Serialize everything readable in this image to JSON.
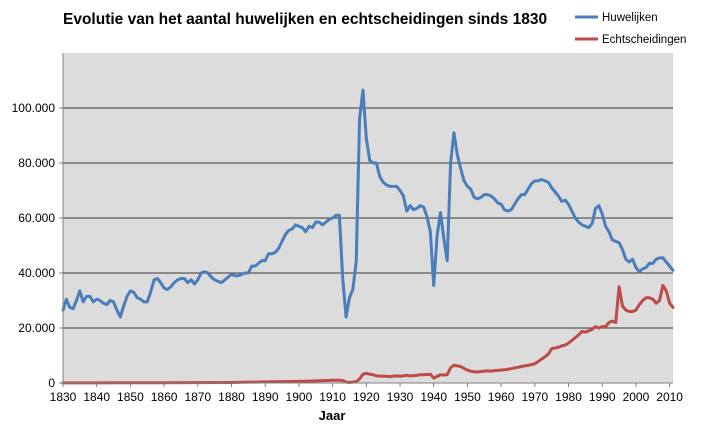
{
  "chart_data": {
    "type": "line",
    "title": "Evolutie van het aantal huwelijken en echtscheidingen sinds 1830",
    "xlabel": "Jaar",
    "ylabel": "",
    "xlim": [
      1830,
      2011
    ],
    "ylim": [
      0,
      120000
    ],
    "xticks": [
      1830,
      1840,
      1850,
      1860,
      1870,
      1880,
      1890,
      1900,
      1910,
      1920,
      1930,
      1940,
      1950,
      1960,
      1970,
      1980,
      1990,
      2000,
      2010
    ],
    "yticks": [
      0,
      20000,
      40000,
      60000,
      80000,
      100000
    ],
    "ytick_labels": [
      "0",
      "20.000",
      "40.000",
      "60.000",
      "80.000",
      "100.000"
    ],
    "grid": "horizontal",
    "background": "#dcdcdc",
    "legend_position": "top-right",
    "series": [
      {
        "name": "Huwelijken",
        "color": "#4a7ebb",
        "points": [
          [
            1830,
            26500
          ],
          [
            1831,
            30500
          ],
          [
            1832,
            27500
          ],
          [
            1833,
            27000
          ],
          [
            1834,
            30000
          ],
          [
            1835,
            33500
          ],
          [
            1836,
            29500
          ],
          [
            1837,
            31500
          ],
          [
            1838,
            31500
          ],
          [
            1839,
            29500
          ],
          [
            1840,
            30500
          ],
          [
            1841,
            30000
          ],
          [
            1842,
            29000
          ],
          [
            1843,
            28500
          ],
          [
            1844,
            30000
          ],
          [
            1845,
            29500
          ],
          [
            1846,
            26500
          ],
          [
            1847,
            24000
          ],
          [
            1848,
            28000
          ],
          [
            1849,
            31500
          ],
          [
            1850,
            33500
          ],
          [
            1851,
            33000
          ],
          [
            1852,
            31000
          ],
          [
            1853,
            30500
          ],
          [
            1854,
            29500
          ],
          [
            1855,
            29500
          ],
          [
            1856,
            33000
          ],
          [
            1857,
            37500
          ],
          [
            1858,
            38000
          ],
          [
            1859,
            36500
          ],
          [
            1860,
            34500
          ],
          [
            1861,
            34000
          ],
          [
            1862,
            35000
          ],
          [
            1863,
            36500
          ],
          [
            1864,
            37500
          ],
          [
            1865,
            38000
          ],
          [
            1866,
            38000
          ],
          [
            1867,
            36500
          ],
          [
            1868,
            37500
          ],
          [
            1869,
            36000
          ],
          [
            1870,
            37500
          ],
          [
            1871,
            40000
          ],
          [
            1872,
            40500
          ],
          [
            1873,
            40000
          ],
          [
            1874,
            38500
          ],
          [
            1875,
            37500
          ],
          [
            1876,
            37000
          ],
          [
            1877,
            36500
          ],
          [
            1878,
            37500
          ],
          [
            1879,
            38500
          ],
          [
            1880,
            39500
          ],
          [
            1881,
            39000
          ],
          [
            1882,
            39000
          ],
          [
            1883,
            39500
          ],
          [
            1884,
            40000
          ],
          [
            1885,
            40000
          ],
          [
            1886,
            42500
          ],
          [
            1887,
            42500
          ],
          [
            1888,
            43500
          ],
          [
            1889,
            44500
          ],
          [
            1890,
            44500
          ],
          [
            1891,
            47000
          ],
          [
            1892,
            47000
          ],
          [
            1893,
            47500
          ],
          [
            1894,
            49000
          ],
          [
            1895,
            51500
          ],
          [
            1896,
            54000
          ],
          [
            1897,
            55500
          ],
          [
            1898,
            56000
          ],
          [
            1899,
            57500
          ],
          [
            1900,
            57000
          ],
          [
            1901,
            56500
          ],
          [
            1902,
            55000
          ],
          [
            1903,
            57000
          ],
          [
            1904,
            56500
          ],
          [
            1905,
            58500
          ],
          [
            1906,
            58500
          ],
          [
            1907,
            57500
          ],
          [
            1908,
            58500
          ],
          [
            1909,
            59500
          ],
          [
            1910,
            60000
          ],
          [
            1911,
            61000
          ],
          [
            1912,
            61000
          ],
          [
            1913,
            38000
          ],
          [
            1914,
            24000
          ],
          [
            1915,
            31000
          ],
          [
            1916,
            34000
          ],
          [
            1917,
            44000
          ],
          [
            1918,
            96000
          ],
          [
            1919,
            106500
          ],
          [
            1920,
            89000
          ],
          [
            1921,
            81000
          ],
          [
            1922,
            80000
          ],
          [
            1923,
            80000
          ],
          [
            1924,
            75000
          ],
          [
            1925,
            73000
          ],
          [
            1926,
            72000
          ],
          [
            1927,
            71500
          ],
          [
            1928,
            71500
          ],
          [
            1929,
            71500
          ],
          [
            1930,
            70000
          ],
          [
            1931,
            68000
          ],
          [
            1932,
            62500
          ],
          [
            1933,
            64500
          ],
          [
            1934,
            63000
          ],
          [
            1935,
            63500
          ],
          [
            1936,
            64500
          ],
          [
            1937,
            64000
          ],
          [
            1938,
            60500
          ],
          [
            1939,
            55000
          ],
          [
            1940,
            35500
          ],
          [
            1941,
            53500
          ],
          [
            1942,
            62000
          ],
          [
            1943,
            52500
          ],
          [
            1944,
            44500
          ],
          [
            1945,
            80000
          ],
          [
            1946,
            91000
          ],
          [
            1947,
            83000
          ],
          [
            1948,
            78000
          ],
          [
            1949,
            73500
          ],
          [
            1950,
            71500
          ],
          [
            1951,
            70500
          ],
          [
            1952,
            67500
          ],
          [
            1953,
            67000
          ],
          [
            1954,
            67500
          ],
          [
            1955,
            68500
          ],
          [
            1956,
            68500
          ],
          [
            1957,
            68000
          ],
          [
            1958,
            67000
          ],
          [
            1959,
            65500
          ],
          [
            1960,
            65000
          ],
          [
            1961,
            63000
          ],
          [
            1962,
            62500
          ],
          [
            1963,
            63000
          ],
          [
            1964,
            65000
          ],
          [
            1965,
            67000
          ],
          [
            1966,
            68500
          ],
          [
            1967,
            68500
          ],
          [
            1968,
            70500
          ],
          [
            1969,
            72500
          ],
          [
            1970,
            73500
          ],
          [
            1971,
            73500
          ],
          [
            1972,
            74000
          ],
          [
            1973,
            73500
          ],
          [
            1974,
            73000
          ],
          [
            1975,
            71000
          ],
          [
            1976,
            69500
          ],
          [
            1977,
            68000
          ],
          [
            1978,
            66000
          ],
          [
            1979,
            66500
          ],
          [
            1980,
            65000
          ],
          [
            1981,
            62500
          ],
          [
            1982,
            60000
          ],
          [
            1983,
            58500
          ],
          [
            1984,
            57500
          ],
          [
            1985,
            57000
          ],
          [
            1986,
            56500
          ],
          [
            1987,
            58000
          ],
          [
            1988,
            63500
          ],
          [
            1989,
            64500
          ],
          [
            1990,
            61500
          ],
          [
            1991,
            57000
          ],
          [
            1992,
            55000
          ],
          [
            1993,
            52000
          ],
          [
            1994,
            51500
          ],
          [
            1995,
            51000
          ],
          [
            1996,
            48500
          ],
          [
            1997,
            45000
          ],
          [
            1998,
            44000
          ],
          [
            1999,
            45000
          ],
          [
            2000,
            42000
          ],
          [
            2001,
            40500
          ],
          [
            2002,
            41500
          ],
          [
            2003,
            42000
          ],
          [
            2004,
            43500
          ],
          [
            2005,
            43500
          ],
          [
            2006,
            45000
          ],
          [
            2007,
            45500
          ],
          [
            2008,
            45500
          ],
          [
            2009,
            44000
          ],
          [
            2010,
            42500
          ],
          [
            2011,
            41000
          ]
        ]
      },
      {
        "name": "Echtscheidingen",
        "color": "#be4b48",
        "points": [
          [
            1830,
            50
          ],
          [
            1840,
            50
          ],
          [
            1850,
            80
          ],
          [
            1860,
            100
          ],
          [
            1870,
            120
          ],
          [
            1880,
            200
          ],
          [
            1885,
            300
          ],
          [
            1890,
            400
          ],
          [
            1895,
            500
          ],
          [
            1900,
            600
          ],
          [
            1903,
            700
          ],
          [
            1906,
            800
          ],
          [
            1908,
            900
          ],
          [
            1910,
            1000
          ],
          [
            1912,
            1000
          ],
          [
            1913,
            900
          ],
          [
            1914,
            300
          ],
          [
            1915,
            200
          ],
          [
            1916,
            300
          ],
          [
            1917,
            500
          ],
          [
            1918,
            1500
          ],
          [
            1919,
            3200
          ],
          [
            1920,
            3500
          ],
          [
            1921,
            3200
          ],
          [
            1922,
            3000
          ],
          [
            1923,
            2600
          ],
          [
            1924,
            2500
          ],
          [
            1925,
            2500
          ],
          [
            1926,
            2400
          ],
          [
            1927,
            2300
          ],
          [
            1928,
            2500
          ],
          [
            1929,
            2600
          ],
          [
            1930,
            2500
          ],
          [
            1931,
            2600
          ],
          [
            1932,
            2800
          ],
          [
            1933,
            2600
          ],
          [
            1934,
            2700
          ],
          [
            1935,
            2800
          ],
          [
            1936,
            3000
          ],
          [
            1937,
            3000
          ],
          [
            1938,
            3100
          ],
          [
            1939,
            3200
          ],
          [
            1940,
            1800
          ],
          [
            1941,
            2400
          ],
          [
            1942,
            3000
          ],
          [
            1943,
            2900
          ],
          [
            1944,
            3000
          ],
          [
            1945,
            5500
          ],
          [
            1946,
            6500
          ],
          [
            1947,
            6200
          ],
          [
            1948,
            6000
          ],
          [
            1949,
            5300
          ],
          [
            1950,
            4700
          ],
          [
            1951,
            4300
          ],
          [
            1952,
            4100
          ],
          [
            1953,
            4000
          ],
          [
            1954,
            4200
          ],
          [
            1955,
            4300
          ],
          [
            1956,
            4400
          ],
          [
            1957,
            4300
          ],
          [
            1958,
            4500
          ],
          [
            1959,
            4600
          ],
          [
            1960,
            4700
          ],
          [
            1961,
            4800
          ],
          [
            1962,
            5000
          ],
          [
            1963,
            5200
          ],
          [
            1964,
            5500
          ],
          [
            1965,
            5700
          ],
          [
            1966,
            6000
          ],
          [
            1967,
            6200
          ],
          [
            1968,
            6400
          ],
          [
            1969,
            6700
          ],
          [
            1970,
            7000
          ],
          [
            1971,
            7800
          ],
          [
            1972,
            8700
          ],
          [
            1973,
            9500
          ],
          [
            1974,
            10500
          ],
          [
            1975,
            12500
          ],
          [
            1976,
            12700
          ],
          [
            1977,
            13000
          ],
          [
            1978,
            13500
          ],
          [
            1979,
            13800
          ],
          [
            1980,
            14500
          ],
          [
            1981,
            15500
          ],
          [
            1982,
            16500
          ],
          [
            1983,
            17500
          ],
          [
            1984,
            18800
          ],
          [
            1985,
            18500
          ],
          [
            1986,
            19000
          ],
          [
            1987,
            19500
          ],
          [
            1988,
            20500
          ],
          [
            1989,
            20000
          ],
          [
            1990,
            20500
          ],
          [
            1991,
            20500
          ],
          [
            1992,
            22000
          ],
          [
            1993,
            22500
          ],
          [
            1994,
            22000
          ],
          [
            1995,
            35000
          ],
          [
            1996,
            28000
          ],
          [
            1997,
            26500
          ],
          [
            1998,
            26000
          ],
          [
            1999,
            26000
          ],
          [
            2000,
            26500
          ],
          [
            2001,
            28500
          ],
          [
            2002,
            30000
          ],
          [
            2003,
            31000
          ],
          [
            2004,
            31000
          ],
          [
            2005,
            30500
          ],
          [
            2006,
            29000
          ],
          [
            2007,
            30000
          ],
          [
            2008,
            35500
          ],
          [
            2009,
            33500
          ],
          [
            2010,
            29000
          ],
          [
            2011,
            27500
          ]
        ]
      }
    ]
  }
}
